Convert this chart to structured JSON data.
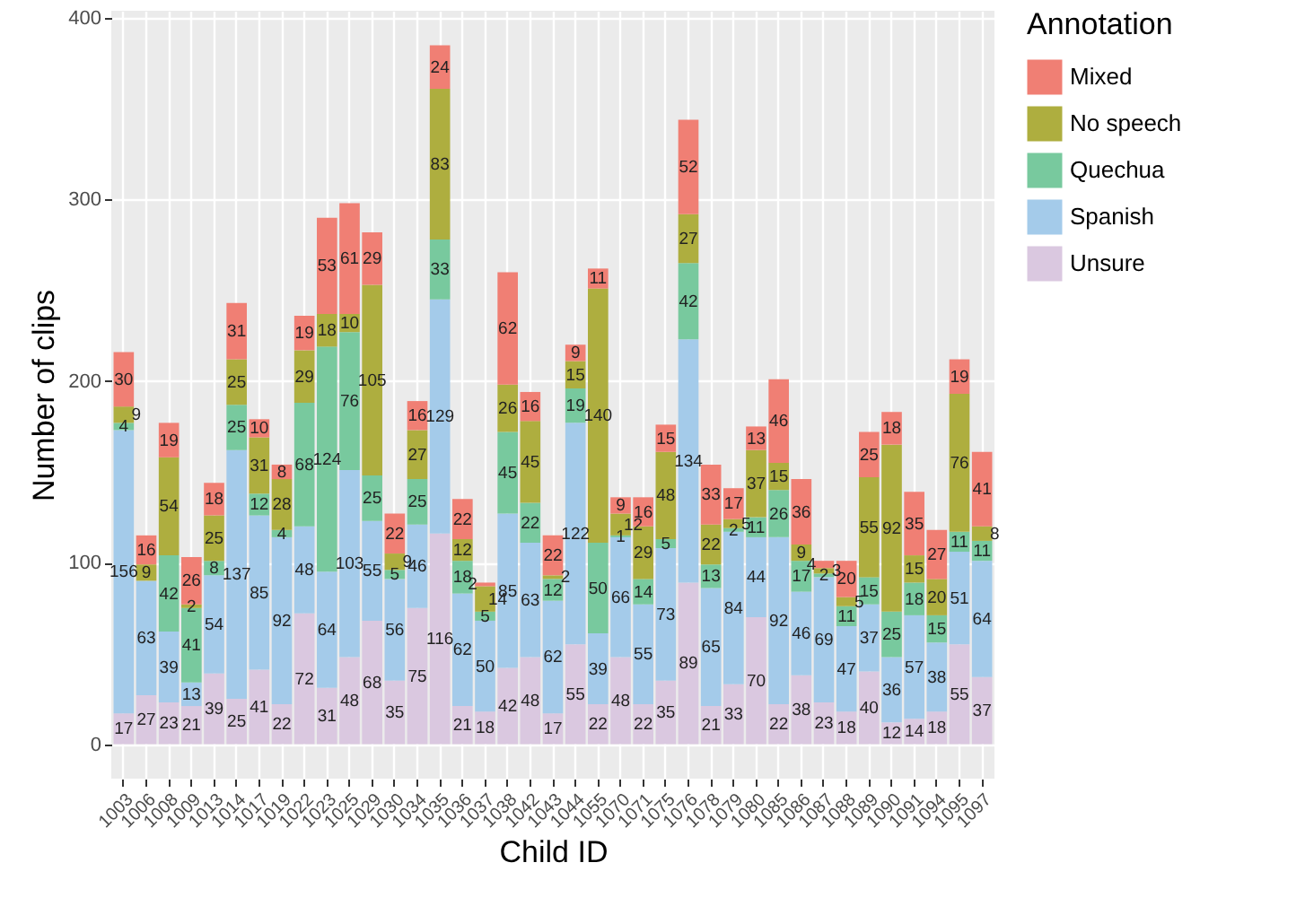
{
  "chart_data": {
    "type": "bar",
    "xlabel": "Child ID",
    "ylabel": "Number of clips",
    "legend_title": "Annotation",
    "categories": [
      "1003",
      "1006",
      "1008",
      "1009",
      "1013",
      "1014",
      "1017",
      "1019",
      "1022",
      "1023",
      "1025",
      "1029",
      "1030",
      "1034",
      "1035",
      "1036",
      "1037",
      "1038",
      "1042",
      "1043",
      "1044",
      "1055",
      "1070",
      "1071",
      "1075",
      "1076",
      "1078",
      "1079",
      "1080",
      "1085",
      "1086",
      "1087",
      "1088",
      "1089",
      "1090",
      "1091",
      "1094",
      "1095",
      "1097"
    ],
    "series": [
      {
        "name": "Unsure",
        "color": "#dac8e0",
        "values": [
          17,
          27,
          23,
          21,
          39,
          25,
          41,
          22,
          72,
          31,
          48,
          68,
          35,
          75,
          116,
          21,
          18,
          42,
          48,
          17,
          55,
          22,
          48,
          22,
          35,
          89,
          21,
          33,
          70,
          22,
          38,
          23,
          18,
          40,
          12,
          14,
          18,
          55,
          37
        ]
      },
      {
        "name": "Spanish",
        "color": "#a4cbea",
        "values": [
          156,
          63,
          39,
          13,
          54,
          137,
          85,
          92,
          48,
          64,
          103,
          55,
          56,
          46,
          129,
          62,
          50,
          85,
          63,
          62,
          122,
          39,
          66,
          55,
          73,
          134,
          65,
          84,
          44,
          92,
          46,
          69,
          47,
          37,
          36,
          57,
          38,
          51,
          64
        ]
      },
      {
        "name": "Quechua",
        "color": "#78c99e",
        "values": [
          4,
          null,
          42,
          41,
          8,
          25,
          12,
          4,
          68,
          124,
          76,
          25,
          5,
          25,
          33,
          18,
          5,
          45,
          22,
          12,
          19,
          50,
          1,
          14,
          5,
          42,
          13,
          2,
          11,
          26,
          17,
          2,
          11,
          15,
          25,
          18,
          15,
          11,
          11
        ]
      },
      {
        "name": "No speech",
        "color": "#aeae3f",
        "values": [
          9,
          9,
          54,
          2,
          25,
          25,
          31,
          28,
          29,
          18,
          10,
          105,
          9,
          27,
          83,
          12,
          14,
          26,
          45,
          2,
          15,
          140,
          12,
          29,
          48,
          27,
          22,
          5,
          37,
          15,
          9,
          3,
          5,
          55,
          92,
          15,
          20,
          76,
          8
        ]
      },
      {
        "name": "Mixed",
        "color": "#f07f74",
        "values": [
          30,
          16,
          19,
          26,
          18,
          31,
          10,
          8,
          19,
          53,
          61,
          29,
          22,
          16,
          24,
          22,
          2,
          62,
          16,
          22,
          9,
          11,
          9,
          16,
          15,
          52,
          33,
          17,
          13,
          46,
          36,
          4,
          20,
          25,
          18,
          35,
          27,
          19,
          41
        ]
      }
    ],
    "stacked": true,
    "ylim": [
      -19,
      404
    ],
    "yticks": [
      0,
      100,
      200,
      300,
      400
    ],
    "grid": true,
    "legend": "right",
    "data_labels": true
  }
}
